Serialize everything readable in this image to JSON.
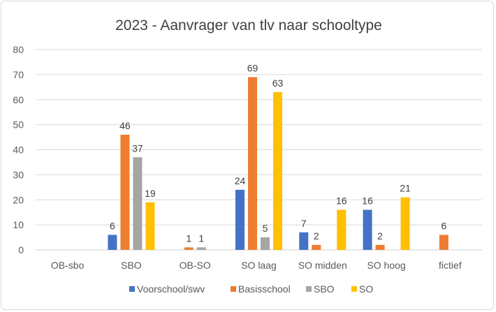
{
  "chart_data": {
    "type": "bar",
    "title": "2023 - Aanvrager van tlv naar schooltype",
    "xlabel": "",
    "ylabel": "",
    "ylim": [
      0,
      80
    ],
    "yticks": [
      "0",
      "10",
      "20",
      "30",
      "40",
      "50",
      "60",
      "70",
      "80"
    ],
    "grid": true,
    "legend_position": "bottom",
    "categories": [
      "OB-sbo",
      "SBO",
      "OB-SO",
      "SO laag",
      "SO midden",
      "SO hoog",
      "fictief"
    ],
    "series": [
      {
        "name": "Voorschool/swv",
        "color": "#4472C4",
        "values": [
          null,
          6,
          null,
          24,
          7,
          16,
          null
        ]
      },
      {
        "name": "Basisschool",
        "color": "#ED7D31",
        "values": [
          null,
          46,
          1,
          69,
          2,
          2,
          6
        ]
      },
      {
        "name": "SBO",
        "color": "#A5A5A5",
        "values": [
          null,
          37,
          1,
          5,
          null,
          null,
          null
        ]
      },
      {
        "name": "SO",
        "color": "#FFC000",
        "values": [
          null,
          19,
          null,
          63,
          16,
          21,
          null
        ]
      }
    ]
  }
}
